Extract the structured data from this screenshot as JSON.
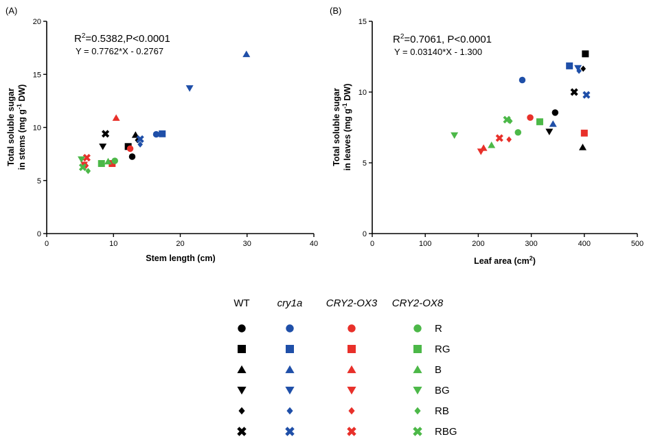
{
  "colors": {
    "WT": "#000000",
    "cry1a": "#1f4fa8",
    "CRY2-OX3": "#e8302a",
    "CRY2-OX8": "#4cb848"
  },
  "legend": {
    "genotypes": [
      "WT",
      "cry1a",
      "CRY2-OX3",
      "CRY2-OX8"
    ],
    "genotype_style": [
      "normal",
      "italic",
      "italic",
      "italic"
    ],
    "treatments": [
      "R",
      "RG",
      "B",
      "BG",
      "RB",
      "RBG"
    ],
    "markers": {
      "R": "circle",
      "RG": "square",
      "B": "triangle-up",
      "BG": "triangle-down",
      "RB": "diamond",
      "RBG": "x"
    }
  },
  "chart_data": [
    {
      "panel": "(A)",
      "type": "scatter",
      "xlabel": "Stem length (cm)",
      "ylabel_line1": "Total soluble sugar",
      "ylabel_line2_pre": "in stems (mg g",
      "ylabel_sup": "-1",
      "ylabel_line2_post": " DW)",
      "xlim": [
        0,
        40
      ],
      "ylim": [
        0,
        20
      ],
      "xticks": [
        0,
        10,
        20,
        30,
        40
      ],
      "yticks": [
        0,
        5,
        10,
        15,
        20
      ],
      "stat_pre": "R",
      "stat_sup": "2",
      "stat_post": "=0.5382,P<0.0001",
      "equation": "Y = 0.7762*X - 0.2767",
      "points": [
        {
          "g": "WT",
          "t": "R",
          "x": 12.8,
          "y": 7.25
        },
        {
          "g": "WT",
          "t": "RG",
          "x": 12.2,
          "y": 8.2
        },
        {
          "g": "WT",
          "t": "B",
          "x": 13.3,
          "y": 9.3
        },
        {
          "g": "WT",
          "t": "BG",
          "x": 8.4,
          "y": 8.2
        },
        {
          "g": "WT",
          "t": "RB",
          "x": 13.6,
          "y": 8.8
        },
        {
          "g": "WT",
          "t": "RBG",
          "x": 8.8,
          "y": 9.4
        },
        {
          "g": "cry1a",
          "t": "R",
          "x": 16.4,
          "y": 9.35
        },
        {
          "g": "cry1a",
          "t": "RG",
          "x": 17.3,
          "y": 9.4
        },
        {
          "g": "cry1a",
          "t": "B",
          "x": 29.9,
          "y": 16.9
        },
        {
          "g": "cry1a",
          "t": "BG",
          "x": 21.4,
          "y": 13.7
        },
        {
          "g": "cry1a",
          "t": "RB",
          "x": 14.0,
          "y": 8.4
        },
        {
          "g": "cry1a",
          "t": "RBG",
          "x": 14.0,
          "y": 8.9
        },
        {
          "g": "CRY2-OX3",
          "t": "R",
          "x": 12.5,
          "y": 8.0
        },
        {
          "g": "CRY2-OX3",
          "t": "RG",
          "x": 9.8,
          "y": 6.6
        },
        {
          "g": "CRY2-OX3",
          "t": "B",
          "x": 10.4,
          "y": 10.9
        },
        {
          "g": "CRY2-OX3",
          "t": "BG",
          "x": 5.6,
          "y": 6.5
        },
        {
          "g": "CRY2-OX3",
          "t": "RB",
          "x": 5.9,
          "y": 6.4
        },
        {
          "g": "CRY2-OX3",
          "t": "RBG",
          "x": 6.0,
          "y": 7.15
        },
        {
          "g": "CRY2-OX8",
          "t": "R",
          "x": 10.2,
          "y": 6.85
        },
        {
          "g": "CRY2-OX8",
          "t": "RG",
          "x": 8.2,
          "y": 6.6
        },
        {
          "g": "CRY2-OX8",
          "t": "B",
          "x": 9.2,
          "y": 6.8
        },
        {
          "g": "CRY2-OX8",
          "t": "BG",
          "x": 5.2,
          "y": 7.0
        },
        {
          "g": "CRY2-OX8",
          "t": "RB",
          "x": 6.2,
          "y": 5.9
        },
        {
          "g": "CRY2-OX8",
          "t": "RBG",
          "x": 5.4,
          "y": 6.25
        }
      ]
    },
    {
      "panel": "(B)",
      "type": "scatter",
      "xlabel_pre": "Leaf area (cm",
      "xlabel_sup": "2",
      "xlabel_post": ")",
      "ylabel_line1": "Total soluble sugar",
      "ylabel_line2_pre": "in leaves (mg g",
      "ylabel_sup": "-1",
      "ylabel_line2_post": " DW)",
      "xlim": [
        0,
        500
      ],
      "ylim": [
        0,
        15
      ],
      "xticks": [
        0,
        100,
        200,
        300,
        400,
        500
      ],
      "yticks": [
        0,
        5,
        10,
        15
      ],
      "stat_pre": "R",
      "stat_sup": "2",
      "stat_post": "=0.7061, P<0.0001",
      "equation": "Y = 0.03140*X - 1.300",
      "points": [
        {
          "g": "WT",
          "t": "R",
          "x": 345,
          "y": 8.55
        },
        {
          "g": "WT",
          "t": "RG",
          "x": 402,
          "y": 12.7
        },
        {
          "g": "WT",
          "t": "B",
          "x": 397,
          "y": 6.1
        },
        {
          "g": "WT",
          "t": "BG",
          "x": 334,
          "y": 7.2
        },
        {
          "g": "WT",
          "t": "RB",
          "x": 398,
          "y": 11.65
        },
        {
          "g": "WT",
          "t": "RBG",
          "x": 381,
          "y": 10.0
        },
        {
          "g": "cry1a",
          "t": "R",
          "x": 283,
          "y": 10.85
        },
        {
          "g": "cry1a",
          "t": "RG",
          "x": 372,
          "y": 11.85
        },
        {
          "g": "cry1a",
          "t": "B",
          "x": 341,
          "y": 7.75
        },
        {
          "g": "cry1a",
          "t": "BG",
          "x": 388,
          "y": 11.7
        },
        {
          "g": "cry1a",
          "t": "RB",
          "x": 390,
          "y": 11.5
        },
        {
          "g": "cry1a",
          "t": "RBG",
          "x": 404,
          "y": 9.8
        },
        {
          "g": "CRY2-OX3",
          "t": "R",
          "x": 298,
          "y": 8.2
        },
        {
          "g": "CRY2-OX3",
          "t": "RG",
          "x": 400,
          "y": 7.1
        },
        {
          "g": "CRY2-OX3",
          "t": "B",
          "x": 210,
          "y": 6.05
        },
        {
          "g": "CRY2-OX3",
          "t": "BG",
          "x": 205,
          "y": 5.8
        },
        {
          "g": "CRY2-OX3",
          "t": "RB",
          "x": 258,
          "y": 6.65
        },
        {
          "g": "CRY2-OX3",
          "t": "RBG",
          "x": 240,
          "y": 6.75
        },
        {
          "g": "CRY2-OX8",
          "t": "R",
          "x": 275,
          "y": 7.15
        },
        {
          "g": "CRY2-OX8",
          "t": "RG",
          "x": 316,
          "y": 7.9
        },
        {
          "g": "CRY2-OX8",
          "t": "B",
          "x": 225,
          "y": 6.25
        },
        {
          "g": "CRY2-OX8",
          "t": "BG",
          "x": 155,
          "y": 6.95
        },
        {
          "g": "CRY2-OX8",
          "t": "RB",
          "x": 260,
          "y": 7.95
        },
        {
          "g": "CRY2-OX8",
          "t": "RBG",
          "x": 254,
          "y": 8.05
        }
      ]
    }
  ]
}
